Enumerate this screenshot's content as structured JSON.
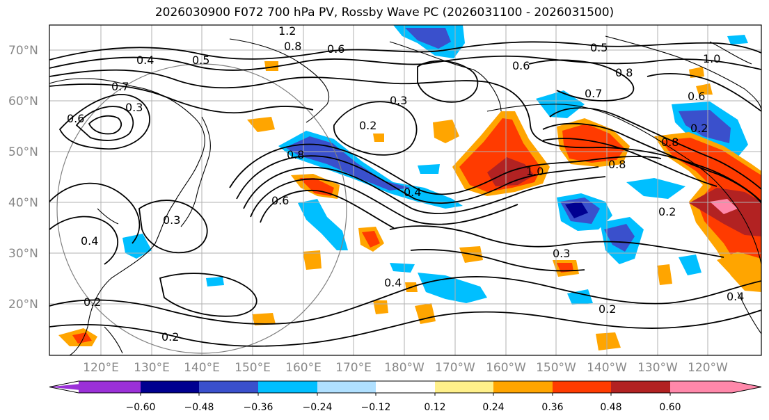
{
  "title": "2026030900 F072 700 hPa PV, Rossby Wave PC (2026031100 - 2026031500)",
  "lat_labels": [
    "70°N",
    "60°N",
    "50°N",
    "40°N",
    "30°N",
    "20°N"
  ],
  "lon_labels": [
    "120°E",
    "130°E",
    "140°E",
    "150°E",
    "160°E",
    "170°E",
    "180°W",
    "170°W",
    "160°W",
    "150°W",
    "140°W",
    "130°W",
    "120°W"
  ],
  "colorbar": {
    "ticks": [
      "−0.60",
      "−0.48",
      "−0.36",
      "−0.24",
      "−0.12",
      "0.12",
      "0.24",
      "0.36",
      "0.48",
      "0.60"
    ],
    "colors": [
      "#9b30d8",
      "#000090",
      "#3a50cc",
      "#00bfff",
      "#b0e0ff",
      "#ffffff",
      "#fff08a",
      "#ffa500",
      "#ff3b00",
      "#b22222",
      "#ff88aa"
    ]
  },
  "contour_labels": [
    "1.2",
    "0.8",
    "0.6",
    "0.4",
    "0.5",
    "0.7",
    "0.3",
    "0.2",
    "0.8",
    "1.0",
    "0.6",
    "0.5",
    "0.7",
    "0.8",
    "0.6",
    "0.2",
    "0.8",
    "0.4",
    "0.6",
    "0.3",
    "0.4",
    "0.2",
    "0.2",
    "0.2",
    "0.4",
    "0.3",
    "0.6",
    "0.8",
    "0.4",
    "1.0",
    "0.2",
    "0.3"
  ]
}
